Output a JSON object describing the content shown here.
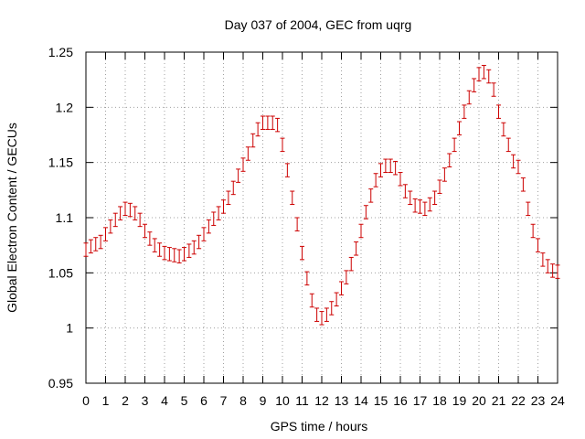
{
  "chart_data": {
    "type": "scatter",
    "title": "Day 037 of 2004, GEC from uqrg",
    "xlabel": "GPS time / hours",
    "ylabel": "Global Electron Content / GECUs",
    "xlim": [
      0,
      24
    ],
    "ylim": [
      0.95,
      1.25
    ],
    "grid": true,
    "series_color": "#cc0000",
    "xticks": [
      "0",
      "1",
      "2",
      "3",
      "4",
      "5",
      "6",
      "7",
      "8",
      "9",
      "10",
      "11",
      "12",
      "13",
      "14",
      "15",
      "16",
      "17",
      "18",
      "19",
      "20",
      "21",
      "22",
      "23",
      "24"
    ],
    "yticks": [
      "0.95",
      "1",
      "1.05",
      "1.1",
      "1.15",
      "1.2",
      "1.25"
    ],
    "error_bar": 0.006,
    "series": [
      {
        "name": "GEC",
        "x": [
          0.0,
          0.25,
          0.5,
          0.75,
          1.0,
          1.25,
          1.5,
          1.75,
          2.0,
          2.25,
          2.5,
          2.75,
          3.0,
          3.25,
          3.5,
          3.75,
          4.0,
          4.25,
          4.5,
          4.75,
          5.0,
          5.25,
          5.5,
          5.75,
          6.0,
          6.25,
          6.5,
          6.75,
          7.0,
          7.25,
          7.5,
          7.75,
          8.0,
          8.25,
          8.5,
          8.75,
          9.0,
          9.25,
          9.5,
          9.75,
          10.0,
          10.25,
          10.5,
          10.75,
          11.0,
          11.25,
          11.5,
          11.75,
          12.0,
          12.25,
          12.5,
          12.75,
          13.0,
          13.25,
          13.5,
          13.75,
          14.0,
          14.25,
          14.5,
          14.75,
          15.0,
          15.25,
          15.5,
          15.75,
          16.0,
          16.25,
          16.5,
          16.75,
          17.0,
          17.25,
          17.5,
          17.75,
          18.0,
          18.25,
          18.5,
          18.75,
          19.0,
          19.25,
          19.5,
          19.75,
          20.0,
          20.25,
          20.5,
          20.75,
          21.0,
          21.25,
          21.5,
          21.75,
          22.0,
          22.25,
          22.5,
          22.75,
          23.0,
          23.25,
          23.5,
          23.75,
          24.0
        ],
        "values": [
          1.071,
          1.074,
          1.076,
          1.078,
          1.085,
          1.092,
          1.098,
          1.104,
          1.108,
          1.107,
          1.104,
          1.098,
          1.088,
          1.081,
          1.075,
          1.071,
          1.068,
          1.067,
          1.066,
          1.065,
          1.067,
          1.07,
          1.073,
          1.078,
          1.085,
          1.092,
          1.099,
          1.104,
          1.11,
          1.118,
          1.127,
          1.138,
          1.148,
          1.158,
          1.17,
          1.18,
          1.186,
          1.186,
          1.186,
          1.184,
          1.166,
          1.143,
          1.118,
          1.094,
          1.068,
          1.045,
          1.025,
          1.012,
          1.009,
          1.012,
          1.018,
          1.026,
          1.036,
          1.046,
          1.058,
          1.072,
          1.088,
          1.105,
          1.12,
          1.134,
          1.143,
          1.147,
          1.147,
          1.145,
          1.135,
          1.124,
          1.118,
          1.111,
          1.11,
          1.108,
          1.112,
          1.118,
          1.128,
          1.139,
          1.152,
          1.166,
          1.181,
          1.196,
          1.209,
          1.22,
          1.23,
          1.232,
          1.228,
          1.216,
          1.196,
          1.18,
          1.166,
          1.151,
          1.146,
          1.13,
          1.108,
          1.088,
          1.075,
          1.062,
          1.056,
          1.052,
          1.051
        ]
      }
    ]
  }
}
